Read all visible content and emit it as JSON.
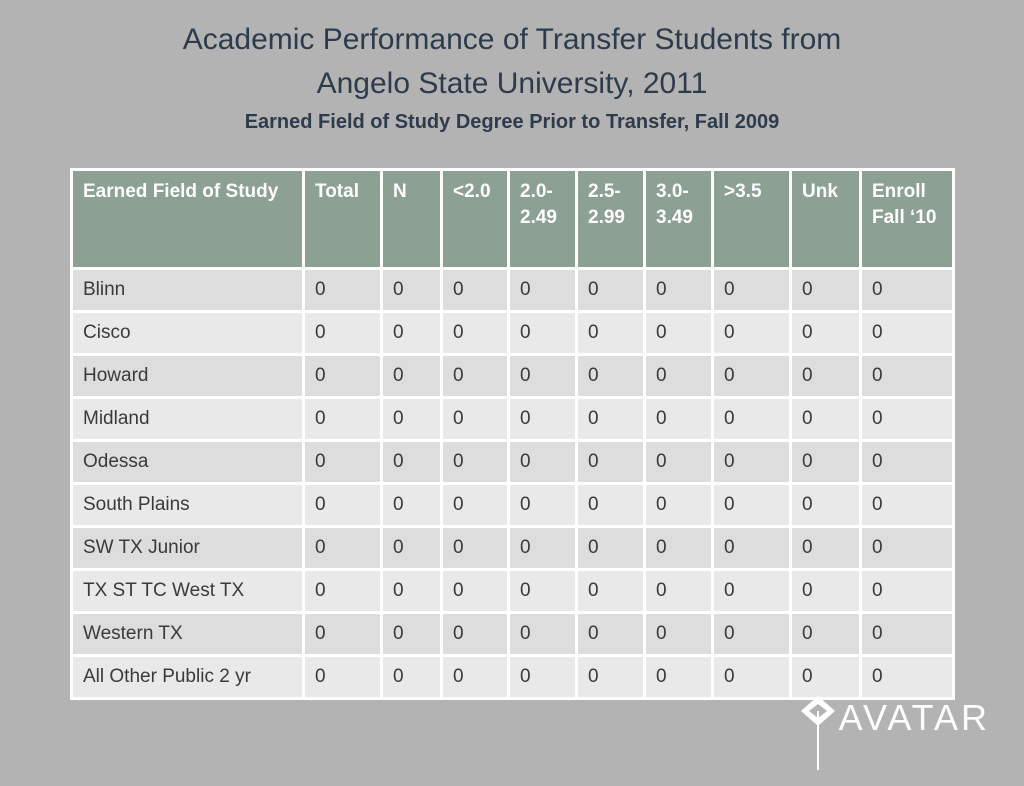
{
  "slide": {
    "title_line1": "Academic Performance of Transfer Students from",
    "title_line2": "Angelo State University, 2011",
    "subtitle": "Earned Field of Study Degree Prior to Transfer, Fall 2009"
  },
  "table": {
    "columns": [
      "Earned Field of Study",
      "Total",
      "N",
      "<2.0",
      "2.0-2.49",
      "2.5-2.99",
      "3.0-3.49",
      ">3.5",
      "Unk",
      "Enroll Fall ‘10"
    ],
    "rows": [
      {
        "label": "Blinn",
        "values": [
          "0",
          "0",
          "0",
          "0",
          "0",
          "0",
          "0",
          "0",
          "0"
        ]
      },
      {
        "label": "Cisco",
        "values": [
          "0",
          "0",
          "0",
          "0",
          "0",
          "0",
          "0",
          "0",
          "0"
        ]
      },
      {
        "label": "Howard",
        "values": [
          "0",
          "0",
          "0",
          "0",
          "0",
          "0",
          "0",
          "0",
          "0"
        ]
      },
      {
        "label": "Midland",
        "values": [
          "0",
          "0",
          "0",
          "0",
          "0",
          "0",
          "0",
          "0",
          "0"
        ]
      },
      {
        "label": "Odessa",
        "values": [
          "0",
          "0",
          "0",
          "0",
          "0",
          "0",
          "0",
          "0",
          "0"
        ]
      },
      {
        "label": "South Plains",
        "values": [
          "0",
          "0",
          "0",
          "0",
          "0",
          "0",
          "0",
          "0",
          "0"
        ]
      },
      {
        "label": "SW TX Junior",
        "values": [
          "0",
          "0",
          "0",
          "0",
          "0",
          "0",
          "0",
          "0",
          "0"
        ]
      },
      {
        "label": "TX ST TC West TX",
        "values": [
          "0",
          "0",
          "0",
          "0",
          "0",
          "0",
          "0",
          "0",
          "0"
        ]
      },
      {
        "label": "Western TX",
        "values": [
          "0",
          "0",
          "0",
          "0",
          "0",
          "0",
          "0",
          "0",
          "0"
        ]
      },
      {
        "label": "All Other Public 2 yr",
        "values": [
          "0",
          "0",
          "0",
          "0",
          "0",
          "0",
          "0",
          "0",
          "0"
        ]
      }
    ]
  },
  "logo": {
    "text": "AVATAR"
  },
  "colors": {
    "background": "#b3b3b3",
    "header_bg": "#8ca094",
    "row_odd": "#dddddd",
    "row_even": "#e9e9e9",
    "title_text": "#2d3b4c",
    "header_text": "#ffffff",
    "body_text": "#3a3a3a"
  }
}
